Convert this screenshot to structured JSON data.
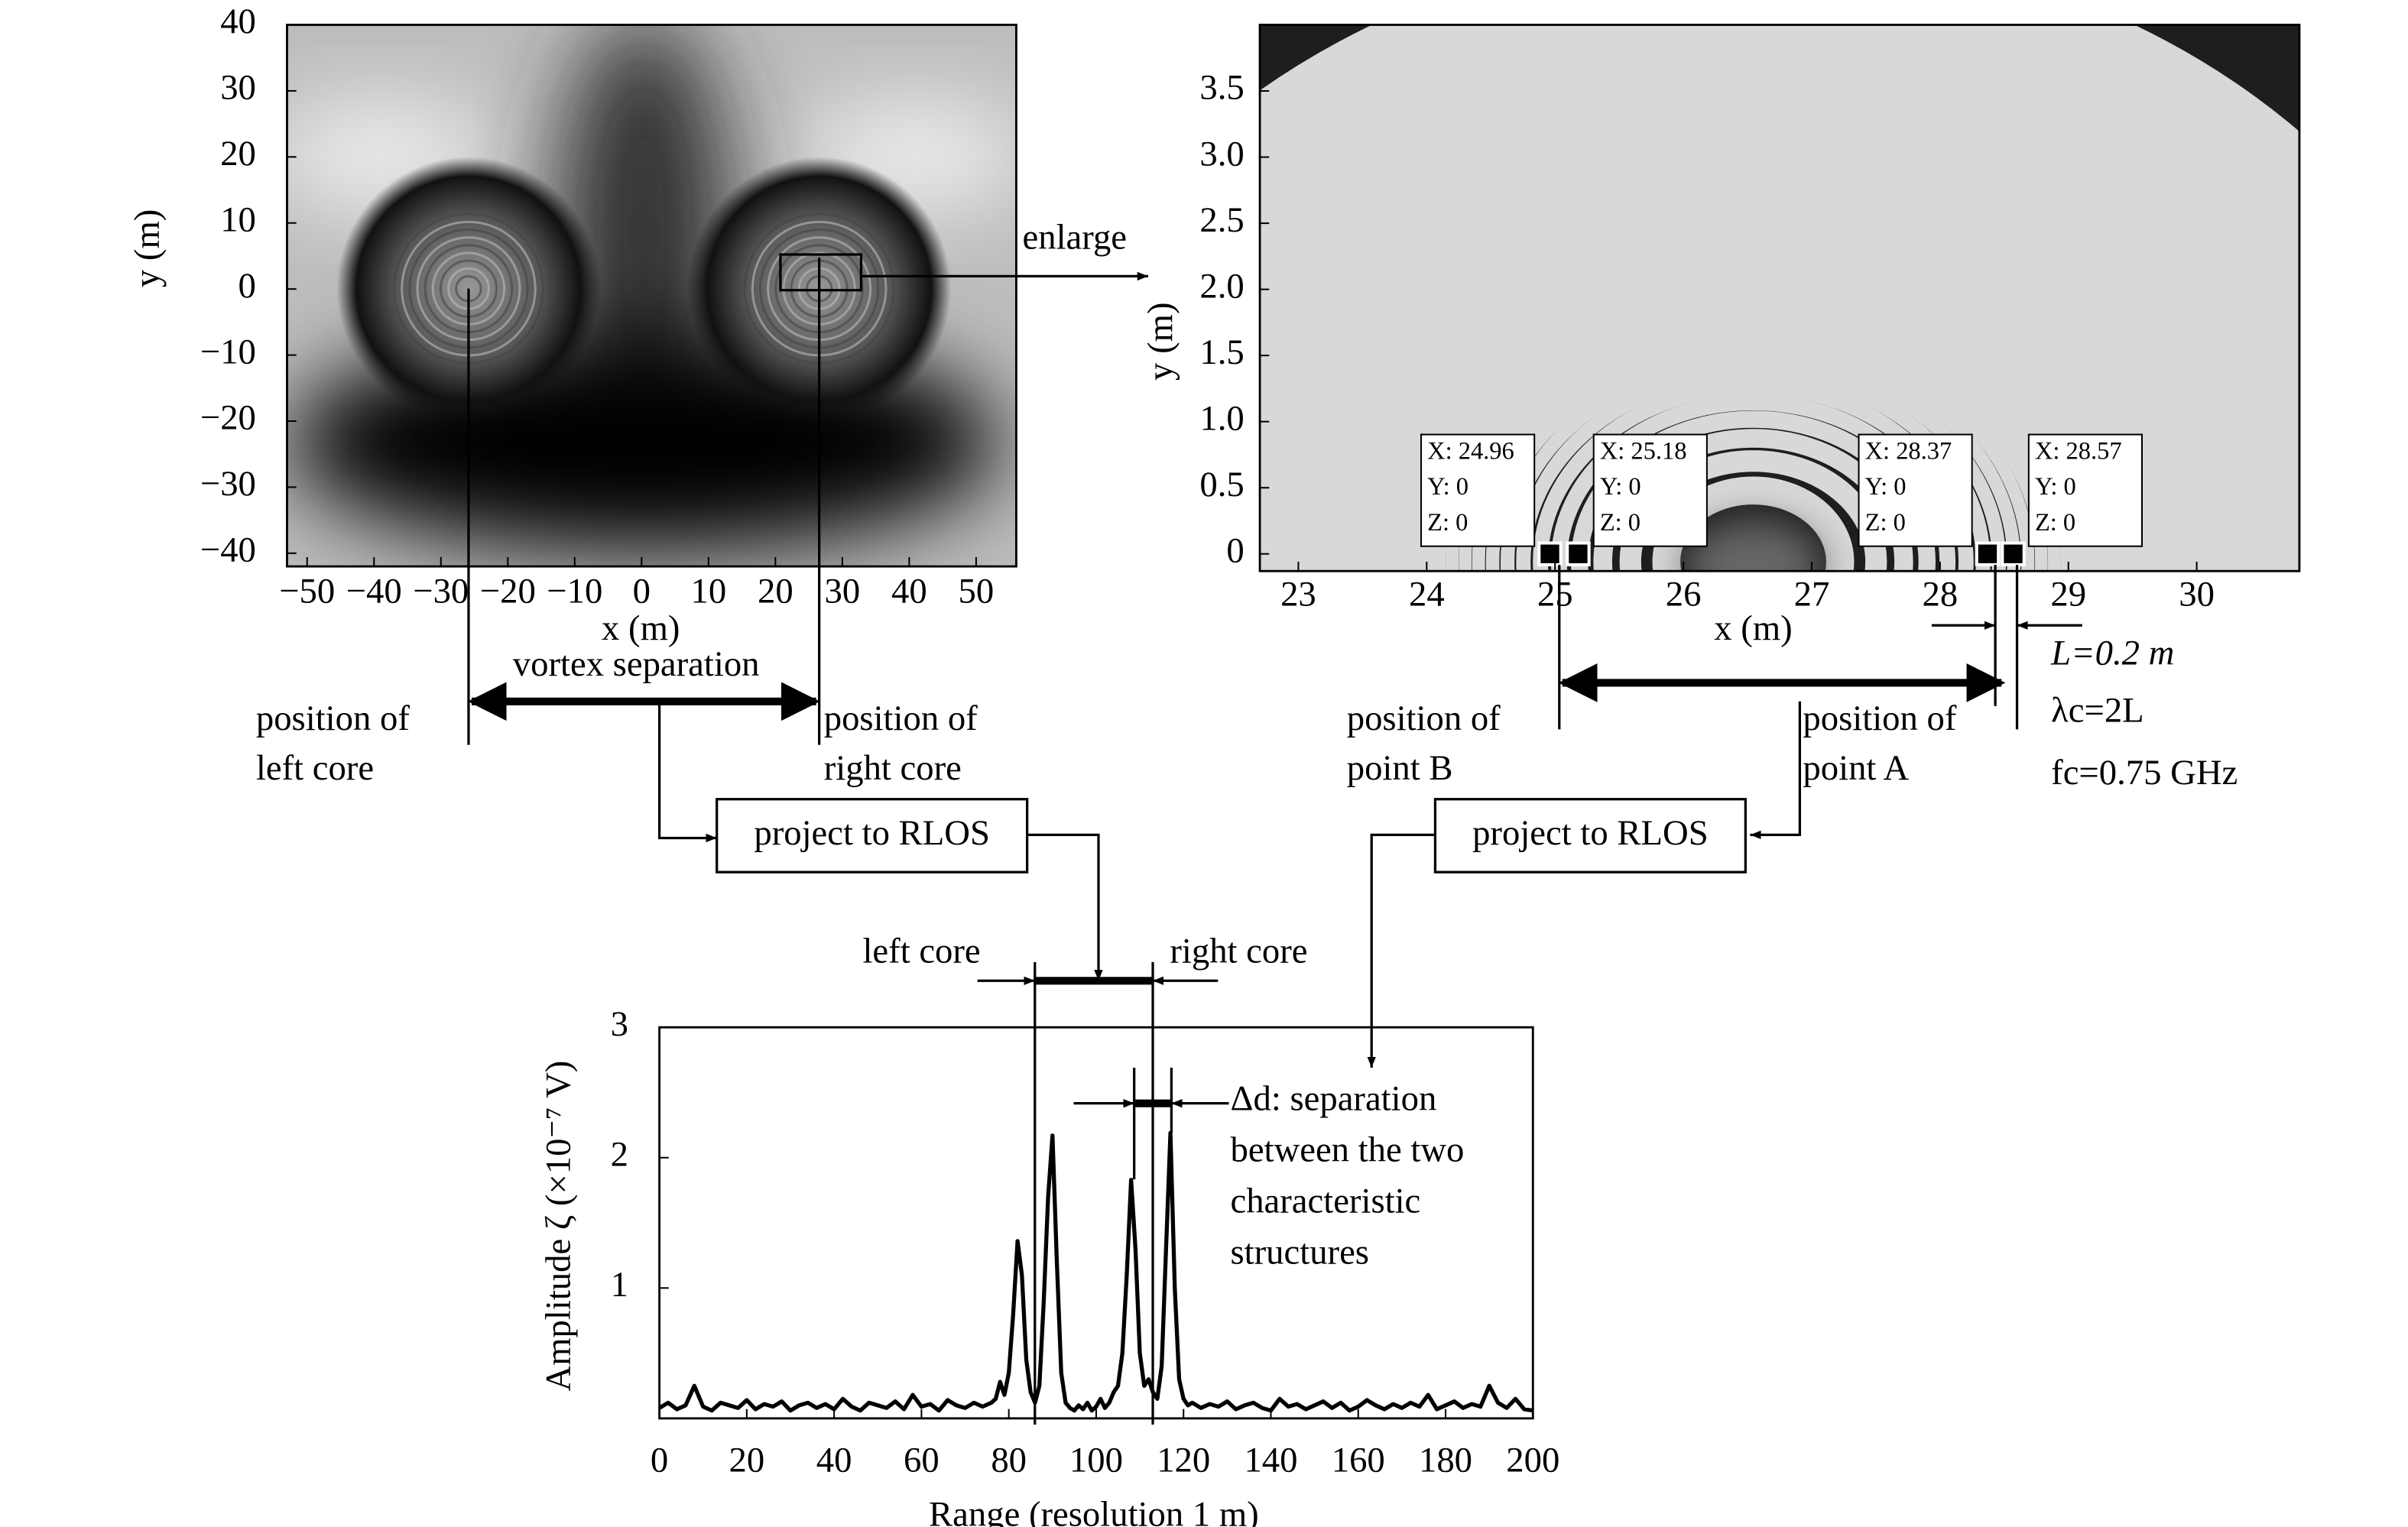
{
  "chart_data": [
    {
      "type": "image",
      "xlabel": "x (m)",
      "ylabel": "y (m)",
      "xlim": [
        -53,
        56
      ],
      "ylim": [
        -42,
        40
      ],
      "xticks": [
        {
          "value": -50,
          "label": "−50"
        },
        {
          "value": -40,
          "label": "−40"
        },
        {
          "value": -30,
          "label": "−30"
        },
        {
          "value": -20,
          "label": "−20"
        },
        {
          "value": -10,
          "label": "−10"
        },
        0,
        10,
        20,
        30,
        40,
        50
      ],
      "yticks": [
        {
          "value": -40,
          "label": "−40"
        },
        {
          "value": -30,
          "label": "−30"
        },
        {
          "value": -20,
          "label": "−20"
        },
        {
          "value": -10,
          "label": "−10"
        },
        0,
        10,
        20,
        30,
        40
      ]
    },
    {
      "type": "image",
      "xlabel": "x (m)",
      "ylabel": "y (m)",
      "xlim": [
        22.7,
        30.8
      ],
      "ylim": [
        -0.13,
        4.0
      ],
      "xticks": [
        23,
        24,
        25,
        26,
        27,
        28,
        29,
        30
      ],
      "yticks": [
        0,
        0.5,
        {
          "value": 1,
          "label": "1.0"
        },
        1.5,
        {
          "value": 2,
          "label": "2.0"
        },
        2.5,
        {
          "value": 3,
          "label": "3.0"
        },
        3.5
      ],
      "datatips": [
        {
          "x": 24.96,
          "y": 0,
          "text": [
            "X: 24.96",
            "Y: 0",
            "Z: 0"
          ]
        },
        {
          "x": 25.18,
          "y": 0,
          "text": [
            "X: 25.18",
            "Y: 0",
            "Z: 0"
          ]
        },
        {
          "x": 28.37,
          "y": 0,
          "text": [
            "X: 28.37",
            "Y: 0",
            "Z: 0"
          ]
        },
        {
          "x": 28.57,
          "y": 0,
          "text": [
            "X: 28.57",
            "Y: 0",
            "Z: 0"
          ]
        }
      ]
    },
    {
      "type": "line",
      "xlabel": "Range (resolution 1 m)",
      "ylabel": "Amplitude ζ (×10⁻⁷ V)",
      "xlim": [
        0,
        200
      ],
      "ylim": [
        0,
        3
      ],
      "xticks": [
        0,
        20,
        40,
        60,
        80,
        100,
        120,
        140,
        160,
        180,
        200
      ],
      "yticks": [
        1,
        2,
        3
      ],
      "color": "#000000",
      "x": [
        0,
        2,
        4,
        6,
        8,
        10,
        12,
        14,
        16,
        18,
        20,
        22,
        24,
        26,
        28,
        30,
        32,
        34,
        36,
        38,
        40,
        42,
        44,
        46,
        48,
        50,
        52,
        54,
        56,
        58,
        60,
        62,
        64,
        66,
        68,
        70,
        72,
        74,
        76,
        77,
        78,
        79,
        80,
        81,
        82,
        83,
        84,
        85,
        86,
        87,
        88,
        89,
        90,
        91,
        92,
        93,
        94,
        95,
        96,
        97,
        98,
        99,
        100,
        101,
        102,
        103,
        104,
        105,
        106,
        107,
        108,
        109,
        110,
        111,
        112,
        113,
        114,
        115,
        116,
        117,
        118,
        119,
        120,
        121,
        122,
        124,
        126,
        128,
        130,
        132,
        134,
        136,
        138,
        140,
        142,
        144,
        146,
        148,
        150,
        152,
        154,
        156,
        158,
        160,
        162,
        164,
        166,
        168,
        170,
        172,
        174,
        176,
        178,
        180,
        182,
        184,
        186,
        188,
        190,
        192,
        194,
        196,
        198,
        200
      ],
      "values": [
        0.08,
        0.12,
        0.07,
        0.1,
        0.25,
        0.09,
        0.06,
        0.12,
        0.1,
        0.08,
        0.14,
        0.07,
        0.11,
        0.09,
        0.13,
        0.06,
        0.1,
        0.12,
        0.08,
        0.11,
        0.07,
        0.15,
        0.09,
        0.06,
        0.12,
        0.1,
        0.08,
        0.13,
        0.07,
        0.18,
        0.09,
        0.11,
        0.06,
        0.14,
        0.1,
        0.08,
        0.12,
        0.09,
        0.12,
        0.15,
        0.28,
        0.18,
        0.35,
        0.8,
        1.36,
        1.1,
        0.45,
        0.2,
        0.12,
        0.25,
        0.9,
        1.7,
        2.17,
        1.2,
        0.35,
        0.12,
        0.08,
        0.06,
        0.1,
        0.07,
        0.12,
        0.06,
        0.09,
        0.15,
        0.08,
        0.12,
        0.2,
        0.25,
        0.5,
        1.1,
        1.83,
        1.3,
        0.5,
        0.25,
        0.3,
        0.2,
        0.15,
        0.4,
        1.3,
        2.19,
        1.0,
        0.3,
        0.15,
        0.1,
        0.12,
        0.08,
        0.11,
        0.09,
        0.13,
        0.07,
        0.1,
        0.12,
        0.08,
        0.06,
        0.15,
        0.09,
        0.11,
        0.07,
        0.1,
        0.13,
        0.08,
        0.12,
        0.06,
        0.09,
        0.14,
        0.1,
        0.07,
        0.11,
        0.08,
        0.12,
        0.09,
        0.18,
        0.07,
        0.1,
        0.13,
        0.08,
        0.11,
        0.09,
        0.25,
        0.12,
        0.08,
        0.15,
        0.07,
        0.06
      ]
    }
  ],
  "diagram": {
    "enlarge": "enlarge",
    "vortex_separation": "vortex separation",
    "left_core_position": [
      "position of",
      "left core"
    ],
    "right_core_position": [
      "position of",
      "right core"
    ],
    "project_left": "project to RLOS",
    "project_right": "project to RLOS",
    "point_b_position": [
      "position of",
      "point B"
    ],
    "point_a_position": [
      "position of",
      "point A"
    ],
    "wavelength_notes": [
      "L=0.2 m",
      "λc=2L",
      "fc=0.75 GHz"
    ],
    "left_core": "left core",
    "right_core": "right core",
    "delta_d": [
      "Δd: separation",
      "between the two",
      "characteristic",
      "structures"
    ]
  }
}
